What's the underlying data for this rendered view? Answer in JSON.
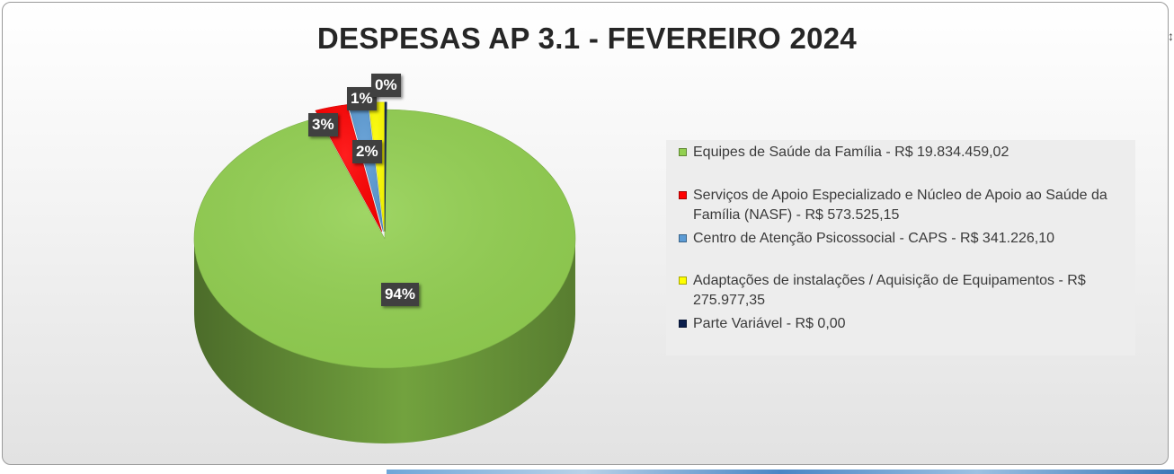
{
  "chart_data": {
    "type": "pie",
    "title": "DESPESAS AP 3.1 - FEVEREIRO 2024",
    "style": "3d-exploded",
    "start_angle_deg": 0,
    "legend_position": "right",
    "slices": [
      {
        "name": "Equipes de Saúde da Família",
        "legend": "Equipes de Saúde da Família - R$ 19.834.459,02",
        "value": 19834459.02,
        "label": "94%",
        "color": "#92d050",
        "exploded": false
      },
      {
        "name": "Serviços de Apoio Especializado e Núcleo de Apoio ao Saúde da Família (NASF)",
        "legend": "Serviços de Apoio Especializado e Núcleo de Apoio ao Saúde da Família (NASF) - R$ 573.525,15",
        "value": 573525.15,
        "label": "3%",
        "color": "#ff0000",
        "exploded": true
      },
      {
        "name": "Centro de Atenção Psicossocial - CAPS",
        "legend": "Centro de Atenção Psicossocial - CAPS - R$ 341.226,10",
        "value": 341226.1,
        "label": "2%",
        "color": "#5b9bd5",
        "exploded": true
      },
      {
        "name": "Adaptações de instalações / Aquisição de Equipamentos",
        "legend": "Adaptações de instalações / Aquisição de Equipamentos - R$ 275.977,35",
        "value": 275977.35,
        "label": "1%",
        "color": "#ffff00",
        "exploded": true
      },
      {
        "name": "Parte Variável",
        "legend": "Parte Variável - R$ 0,00",
        "value": 0.0,
        "label": "0%",
        "color": "#0b1f4d",
        "exploded": true
      }
    ]
  }
}
